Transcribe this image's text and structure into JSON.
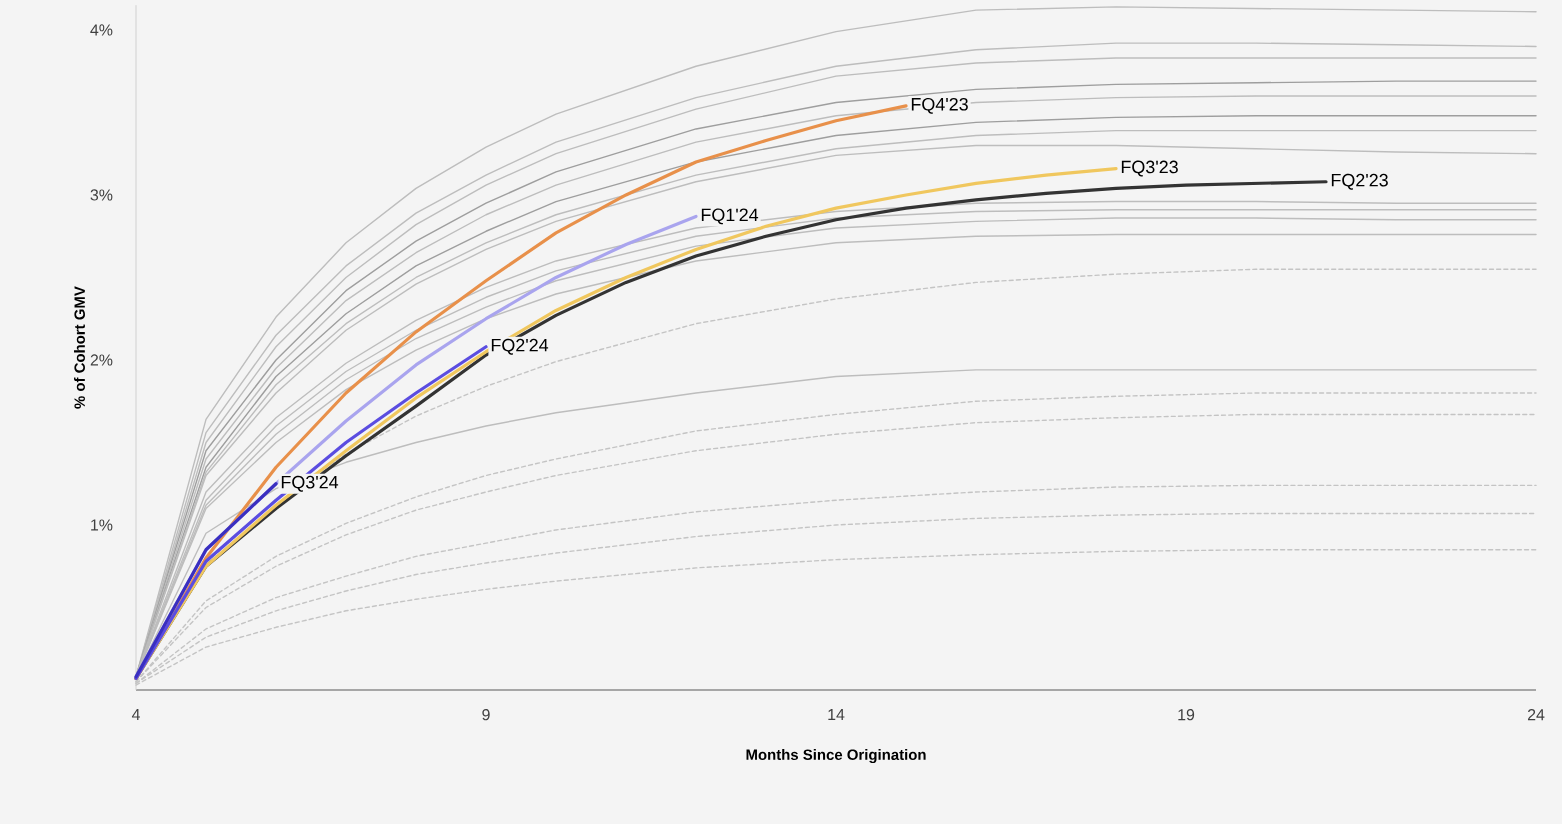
{
  "chart_data": {
    "type": "line",
    "xlabel": "Months Since Origination",
    "ylabel": "% of Cohort GMV",
    "xlim": [
      4,
      24
    ],
    "ylim": [
      0,
      4.15
    ],
    "xticks": [
      4,
      9,
      14,
      19,
      24
    ],
    "yticks": [
      {
        "value": 1,
        "label": "1%"
      },
      {
        "value": 2,
        "label": "2%"
      },
      {
        "value": 3,
        "label": "3%"
      },
      {
        "value": 4,
        "label": "4%"
      }
    ],
    "series": [
      {
        "color": "#bdbdbd",
        "x": [
          4,
          5,
          6,
          7,
          8,
          9,
          10,
          12,
          14,
          16,
          18,
          20,
          22,
          24
        ],
        "values": [
          0.08,
          1.64,
          2.26,
          2.71,
          3.04,
          3.29,
          3.49,
          3.78,
          3.99,
          4.12,
          4.14,
          4.13,
          4.12,
          4.11
        ]
      },
      {
        "color": "#bdbdbd",
        "x": [
          4,
          5,
          6,
          7,
          8,
          9,
          10,
          12,
          14,
          16,
          18,
          20,
          22,
          24
        ],
        "values": [
          0.08,
          1.56,
          2.15,
          2.57,
          2.89,
          3.12,
          3.32,
          3.59,
          3.78,
          3.88,
          3.92,
          3.92,
          3.91,
          3.9
        ]
      },
      {
        "color": "#bdbdbd",
        "x": [
          4,
          5,
          6,
          7,
          8,
          9,
          10,
          12,
          14,
          16,
          18,
          20,
          22,
          24
        ],
        "values": [
          0.08,
          1.5,
          2.08,
          2.5,
          2.82,
          3.06,
          3.25,
          3.52,
          3.72,
          3.8,
          3.83,
          3.83,
          3.83,
          3.83
        ]
      },
      {
        "color": "#9e9e9e",
        "x": [
          4,
          5,
          6,
          7,
          8,
          9,
          10,
          12,
          14,
          16,
          18,
          20,
          22,
          24
        ],
        "values": [
          0.08,
          1.45,
          2.0,
          2.42,
          2.72,
          2.95,
          3.14,
          3.4,
          3.56,
          3.64,
          3.67,
          3.68,
          3.69,
          3.69
        ]
      },
      {
        "color": "#bdbdbd",
        "x": [
          4,
          5,
          6,
          7,
          8,
          9,
          10,
          12,
          14,
          16,
          18,
          20,
          22,
          24
        ],
        "values": [
          0.08,
          1.4,
          1.95,
          2.36,
          2.65,
          2.88,
          3.06,
          3.32,
          3.48,
          3.56,
          3.59,
          3.6,
          3.6,
          3.6
        ]
      },
      {
        "color": "#9e9e9e",
        "x": [
          4,
          5,
          6,
          7,
          8,
          9,
          10,
          12,
          14,
          16,
          18,
          20,
          22,
          24
        ],
        "values": [
          0.08,
          1.35,
          1.9,
          2.28,
          2.57,
          2.78,
          2.96,
          3.2,
          3.36,
          3.44,
          3.47,
          3.48,
          3.48,
          3.48
        ]
      },
      {
        "color": "#bdbdbd",
        "x": [
          4,
          5,
          6,
          7,
          8,
          9,
          10,
          12,
          14,
          16,
          18,
          20,
          22,
          24
        ],
        "values": [
          0.08,
          1.32,
          1.85,
          2.22,
          2.5,
          2.71,
          2.88,
          3.12,
          3.28,
          3.36,
          3.39,
          3.39,
          3.39,
          3.39
        ]
      },
      {
        "color": "#bdbdbd",
        "x": [
          4,
          5,
          6,
          7,
          8,
          9,
          10,
          12,
          14,
          16,
          18,
          20,
          22,
          24
        ],
        "values": [
          0.08,
          1.3,
          1.8,
          2.18,
          2.46,
          2.67,
          2.84,
          3.08,
          3.24,
          3.3,
          3.3,
          3.28,
          3.26,
          3.25
        ]
      },
      {
        "color": "#bdbdbd",
        "x": [
          4,
          5,
          6,
          7,
          8,
          9,
          10,
          12,
          14,
          16,
          18,
          20,
          22,
          24
        ],
        "values": [
          0.08,
          1.2,
          1.65,
          1.98,
          2.24,
          2.44,
          2.6,
          2.8,
          2.9,
          2.95,
          2.96,
          2.96,
          2.95,
          2.95
        ]
      },
      {
        "color": "#bdbdbd",
        "x": [
          4,
          5,
          6,
          7,
          8,
          9,
          10,
          12,
          14,
          16,
          18,
          20,
          22,
          24
        ],
        "values": [
          0.08,
          1.15,
          1.6,
          1.93,
          2.18,
          2.38,
          2.54,
          2.75,
          2.86,
          2.9,
          2.91,
          2.91,
          2.91,
          2.91
        ]
      },
      {
        "color": "#bdbdbd",
        "x": [
          4,
          5,
          6,
          7,
          8,
          9,
          10,
          12,
          14,
          16,
          18,
          20,
          22,
          24
        ],
        "values": [
          0.08,
          1.12,
          1.55,
          1.88,
          2.13,
          2.32,
          2.48,
          2.69,
          2.8,
          2.84,
          2.86,
          2.86,
          2.85,
          2.85
        ]
      },
      {
        "color": "#bdbdbd",
        "x": [
          4,
          5,
          6,
          7,
          8,
          9,
          10,
          12,
          14,
          16,
          18,
          20,
          22,
          24
        ],
        "values": [
          0.08,
          1.1,
          1.5,
          1.82,
          2.06,
          2.25,
          2.4,
          2.6,
          2.71,
          2.75,
          2.76,
          2.76,
          2.76,
          2.76
        ]
      },
      {
        "color": "#bdbdbd",
        "x": [
          4,
          5,
          6,
          7,
          8,
          9,
          10,
          12,
          14,
          16,
          18,
          20,
          22,
          24
        ],
        "values": [
          0.08,
          0.95,
          1.22,
          1.38,
          1.5,
          1.6,
          1.68,
          1.8,
          1.9,
          1.94,
          1.94,
          1.94,
          1.94,
          1.94
        ]
      },
      {
        "color": "#c4c4c4",
        "line_style": "dashed",
        "x": [
          4,
          5,
          6,
          7,
          8,
          9,
          10,
          12,
          14,
          16,
          18,
          20,
          22,
          24
        ],
        "values": [
          0.07,
          0.77,
          1.15,
          1.43,
          1.66,
          1.84,
          1.99,
          2.22,
          2.37,
          2.47,
          2.52,
          2.55,
          2.55,
          2.55
        ]
      },
      {
        "color": "#c4c4c4",
        "line_style": "dashed",
        "x": [
          4,
          5,
          6,
          7,
          8,
          9,
          10,
          12,
          14,
          16,
          18,
          20,
          22,
          24
        ],
        "values": [
          0.05,
          0.54,
          0.81,
          1.01,
          1.17,
          1.3,
          1.4,
          1.57,
          1.67,
          1.75,
          1.78,
          1.8,
          1.8,
          1.8
        ]
      },
      {
        "color": "#c4c4c4",
        "line_style": "dashed",
        "x": [
          4,
          5,
          6,
          7,
          8,
          9,
          10,
          12,
          14,
          16,
          18,
          20,
          22,
          24
        ],
        "values": [
          0.05,
          0.5,
          0.75,
          0.94,
          1.09,
          1.2,
          1.3,
          1.45,
          1.55,
          1.62,
          1.65,
          1.67,
          1.67,
          1.67
        ]
      },
      {
        "color": "#c4c4c4",
        "line_style": "dashed",
        "x": [
          4,
          5,
          6,
          7,
          8,
          9,
          10,
          12,
          14,
          16,
          18,
          20,
          22,
          24
        ],
        "values": [
          0.04,
          0.37,
          0.56,
          0.69,
          0.81,
          0.89,
          0.97,
          1.08,
          1.15,
          1.2,
          1.23,
          1.24,
          1.24,
          1.24
        ]
      },
      {
        "color": "#c4c4c4",
        "line_style": "dashed",
        "x": [
          4,
          5,
          6,
          7,
          8,
          9,
          10,
          12,
          14,
          16,
          18,
          20,
          22,
          24
        ],
        "values": [
          0.04,
          0.32,
          0.48,
          0.6,
          0.7,
          0.77,
          0.83,
          0.93,
          1.0,
          1.04,
          1.06,
          1.07,
          1.07,
          1.07
        ]
      },
      {
        "color": "#c4c4c4",
        "line_style": "dashed",
        "x": [
          4,
          5,
          6,
          7,
          8,
          9,
          10,
          12,
          14,
          16,
          18,
          20,
          22,
          24
        ],
        "values": [
          0.03,
          0.26,
          0.38,
          0.48,
          0.55,
          0.61,
          0.66,
          0.74,
          0.79,
          0.82,
          0.84,
          0.85,
          0.85,
          0.85
        ]
      },
      {
        "name": "FQ2'23",
        "color": "#333333",
        "x": [
          4,
          5,
          6,
          7,
          8,
          9,
          10,
          11,
          12,
          13,
          14,
          15,
          16,
          17,
          18,
          19,
          20,
          21
        ],
        "values": [
          0.07,
          0.75,
          1.1,
          1.42,
          1.72,
          2.03,
          2.27,
          2.47,
          2.63,
          2.75,
          2.85,
          2.92,
          2.97,
          3.01,
          3.04,
          3.06,
          3.07,
          3.08
        ]
      },
      {
        "name": "FQ3'23",
        "color": "#f0c75e",
        "x": [
          4,
          5,
          6,
          7,
          8,
          9,
          10,
          11,
          12,
          13,
          14,
          15,
          16,
          17,
          18
        ],
        "values": [
          0.07,
          0.75,
          1.12,
          1.45,
          1.77,
          2.05,
          2.3,
          2.5,
          2.67,
          2.81,
          2.92,
          3.0,
          3.07,
          3.12,
          3.16
        ]
      },
      {
        "name": "FQ4'23",
        "color": "#e8904a",
        "x": [
          4,
          5,
          6,
          7,
          8,
          9,
          10,
          11,
          12,
          13,
          14,
          15
        ],
        "values": [
          0.07,
          0.8,
          1.35,
          1.8,
          2.17,
          2.48,
          2.77,
          3.0,
          3.2,
          3.33,
          3.45,
          3.54
        ]
      },
      {
        "name": "FQ1'24",
        "color": "#a9a4ee",
        "x": [
          4,
          5,
          6,
          7,
          8,
          9,
          10,
          11,
          12
        ],
        "values": [
          0.08,
          0.85,
          1.25,
          1.63,
          1.97,
          2.25,
          2.5,
          2.7,
          2.87
        ]
      },
      {
        "name": "FQ2'24",
        "color": "#5b4de0",
        "x": [
          4,
          5,
          6,
          7,
          8,
          9
        ],
        "values": [
          0.07,
          0.78,
          1.15,
          1.5,
          1.8,
          2.08
        ]
      },
      {
        "name": "FQ3'24",
        "color": "#3a2fc0",
        "x": [
          4,
          5,
          6
        ],
        "values": [
          0.08,
          0.85,
          1.25
        ]
      }
    ]
  }
}
